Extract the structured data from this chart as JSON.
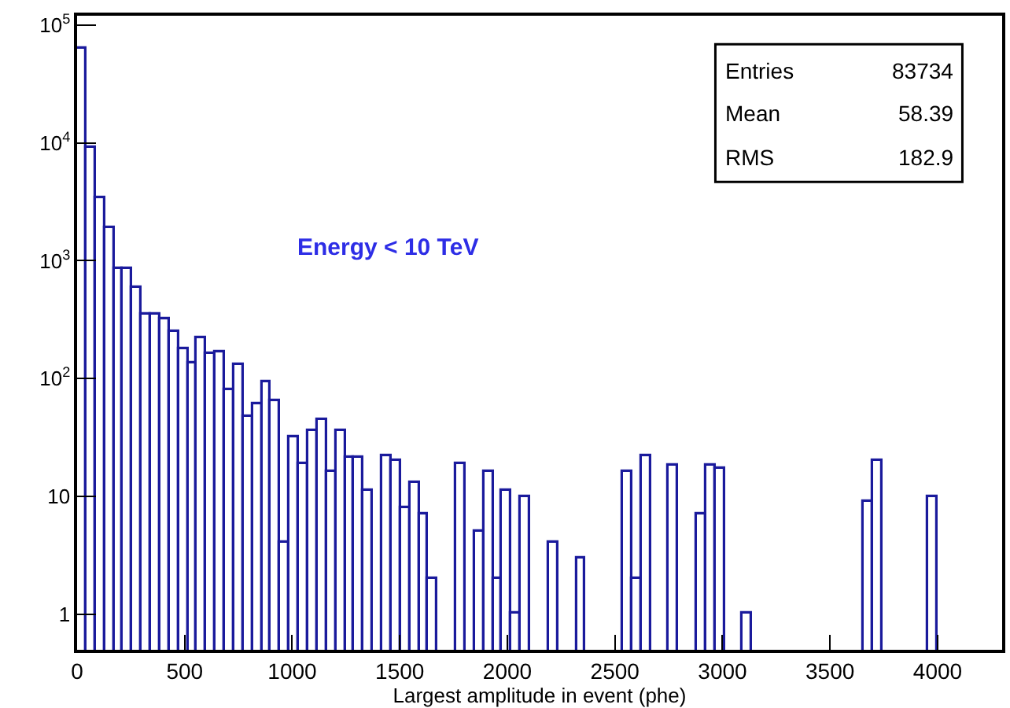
{
  "chart_data": {
    "type": "histogram",
    "xlabel": "Largest amplitude in event (phe)",
    "bins": [
      0,
      43,
      86,
      129,
      172,
      215,
      258,
      301,
      344,
      387,
      430,
      473,
      516,
      559,
      602,
      645,
      688,
      731,
      774,
      817,
      860,
      903,
      946,
      989,
      1032,
      1075,
      1118,
      1161,
      1204,
      1247,
      1290,
      1333,
      1376,
      1419,
      1462,
      1505,
      1548,
      1591,
      1634,
      1677,
      1720,
      1763,
      1806,
      1849,
      1892,
      1935,
      1978,
      2021,
      2064,
      2107,
      2150,
      2193,
      2236,
      2279,
      2322,
      2365,
      2408,
      2451,
      2494,
      2537,
      2580,
      2623,
      2666,
      2709,
      2752,
      2795,
      2838,
      2881,
      2924,
      2967,
      3010,
      3053,
      3096,
      3139,
      3182,
      3225,
      3268,
      3311,
      3354,
      3397,
      3440,
      3483,
      3526,
      3569,
      3612,
      3655,
      3698,
      3741,
      3784,
      3827,
      3870,
      3913,
      3956,
      3999,
      4042,
      4085,
      4128,
      4171,
      4214,
      4257,
      4300
    ],
    "values": [
      63000,
      9200,
      3400,
      1900,
      850,
      850,
      580,
      350,
      350,
      320,
      245,
      175,
      135,
      220,
      160,
      167,
      79,
      130,
      48,
      61,
      92,
      64,
      4,
      32,
      19,
      36,
      45,
      16,
      36,
      21,
      21,
      11,
      null,
      22,
      20,
      8,
      13,
      7,
      2,
      null,
      null,
      19,
      null,
      5,
      16,
      2,
      11,
      1,
      10,
      null,
      null,
      4,
      null,
      null,
      3,
      null,
      null,
      null,
      null,
      16,
      2,
      22,
      null,
      null,
      18,
      null,
      null,
      7,
      18,
      17,
      null,
      null,
      1,
      null,
      null,
      null,
      null,
      null,
      null,
      null,
      null,
      null,
      null,
      null,
      null,
      9,
      20,
      null,
      null,
      null,
      null,
      null,
      10,
      null,
      null,
      null,
      null,
      null,
      null,
      null
    ],
    "color": "#1a1a9c",
    "log": "y",
    "xlim": [
      0,
      4300
    ],
    "ylim": [
      0.5,
      120000
    ],
    "xticks": [
      0,
      500,
      1000,
      1500,
      2000,
      2500,
      3000,
      3500,
      4000
    ],
    "yticks": [
      1,
      10,
      {
        "value": 100,
        "label": "10$^{2}$"
      },
      {
        "value": 1000,
        "label": "10$^{3}$"
      },
      {
        "value": 10000,
        "label": "10$^{4}$"
      },
      {
        "value": 100000,
        "label": "10$^{5}$"
      }
    ],
    "annotations": [
      "Energy < 10 TeV",
      "Entries",
      "83734",
      "Mean",
      "58.39",
      "RMS",
      "182.9"
    ],
    "grid": false,
    "legend": false
  }
}
